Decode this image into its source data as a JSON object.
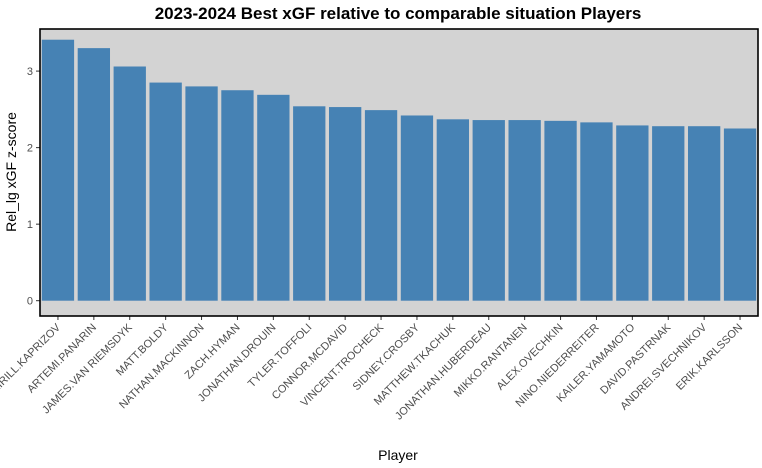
{
  "chart_data": {
    "type": "bar",
    "title": "2023-2024 Best xGF relative to comparable situation Players",
    "xlabel": "Player",
    "ylabel": "Rel_lg xGF z-score",
    "ylim": [
      -0.2,
      3.55
    ],
    "yticks": [
      0,
      1,
      2,
      3
    ],
    "grid": false,
    "colors": {
      "bar": "#4682b4",
      "panel": "#d3d3d3",
      "border": "#000000",
      "tick": "#4d4d4d"
    },
    "categories": [
      "KIRILL.KAPRIZOV",
      "ARTEMI.PANARIN",
      "JAMES.VAN RIEMSDYK",
      "MATT.BOLDY",
      "NATHAN.MACKINNON",
      "ZACH.HYMAN",
      "JONATHAN.DROUIN",
      "TYLER.TOFFOLI",
      "CONNOR.MCDAVID",
      "VINCENT.TROCHECK",
      "SIDNEY.CROSBY",
      "MATTHEW.TKACHUK",
      "JONATHAN.HUBERDEAU",
      "MIKKO.RANTANEN",
      "ALEX.OVECHKIN",
      "NINO.NIEDERREITER",
      "KAILER.YAMAMOTO",
      "DAVID.PASTRNAK",
      "ANDREI.SVECHNIKOV",
      "ERIK.KARLSSON"
    ],
    "values": [
      3.41,
      3.3,
      3.06,
      2.85,
      2.8,
      2.75,
      2.69,
      2.54,
      2.53,
      2.49,
      2.42,
      2.37,
      2.36,
      2.36,
      2.35,
      2.33,
      2.29,
      2.28,
      2.28,
      2.25
    ]
  }
}
